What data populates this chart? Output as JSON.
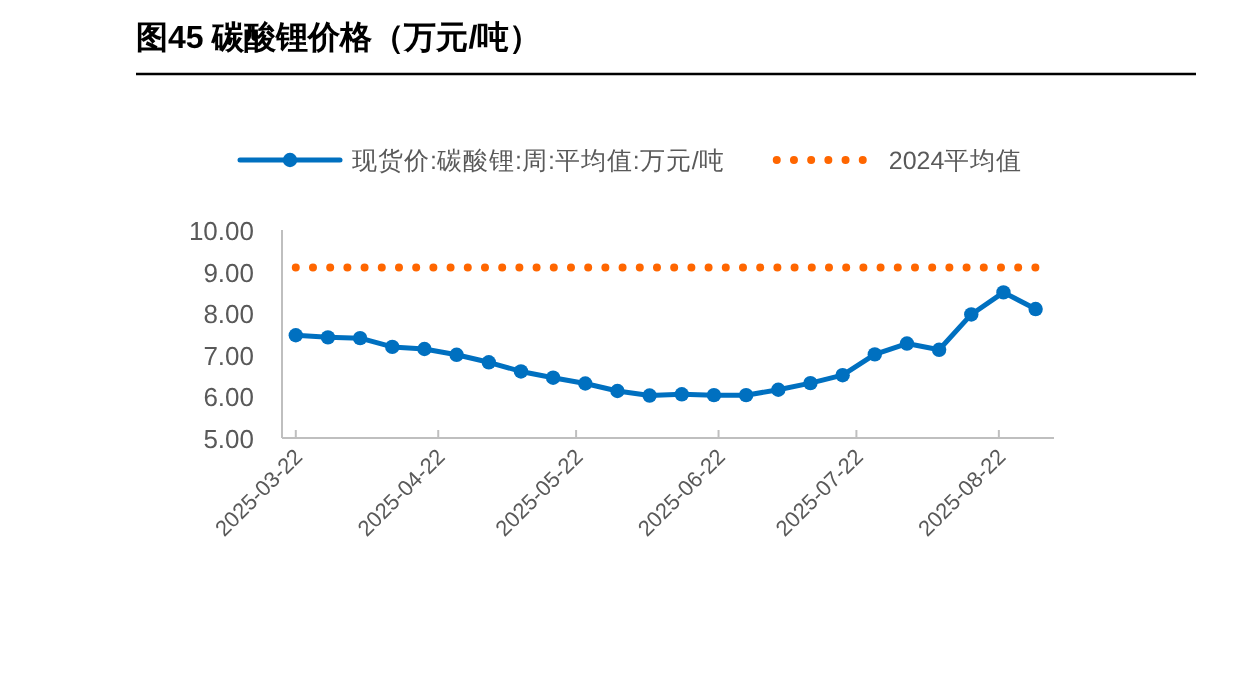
{
  "chart_data": {
    "type": "line",
    "title": "图45 碳酸锂价格（万元/吨）",
    "x": [
      "2025-03-22",
      "2025-03-29",
      "2025-04-05",
      "2025-04-12",
      "2025-04-19",
      "2025-04-26",
      "2025-05-03",
      "2025-05-10",
      "2025-05-17",
      "2025-05-24",
      "2025-05-31",
      "2025-06-07",
      "2025-06-14",
      "2025-06-21",
      "2025-06-28",
      "2025-07-05",
      "2025-07-12",
      "2025-07-19",
      "2025-07-26",
      "2025-08-02",
      "2025-08-09",
      "2025-08-16",
      "2025-08-23",
      "2025-08-30"
    ],
    "series": [
      {
        "name": "现货价:碳酸锂:周:平均值:万元/吨",
        "color": "#0070c0",
        "marker": "circle",
        "line_style": "solid",
        "values": [
          7.47,
          7.42,
          7.4,
          7.19,
          7.14,
          7.0,
          6.82,
          6.6,
          6.45,
          6.31,
          6.13,
          6.02,
          6.05,
          6.03,
          6.03,
          6.16,
          6.32,
          6.51,
          7.01,
          7.27,
          7.12,
          7.97,
          8.5,
          8.1
        ]
      },
      {
        "name": "2024平均值",
        "color": "#ff6600",
        "marker": "none",
        "line_style": "dotted",
        "values": [
          9.1,
          9.1,
          9.1,
          9.1,
          9.1,
          9.1,
          9.1,
          9.1,
          9.1,
          9.1,
          9.1,
          9.1,
          9.1,
          9.1,
          9.1,
          9.1,
          9.1,
          9.1,
          9.1,
          9.1,
          9.1,
          9.1,
          9.1,
          9.1
        ]
      }
    ],
    "xlim": [
      "2025-03-19",
      "2025-09-03"
    ],
    "xticks": [
      "2025-03-22",
      "2025-04-22",
      "2025-05-22",
      "2025-06-22",
      "2025-07-22",
      "2025-08-22"
    ],
    "ylim": [
      5,
      10
    ],
    "yticks": [
      {
        "value": 5,
        "label": "5.00"
      },
      {
        "value": 6,
        "label": "6.00"
      },
      {
        "value": 7,
        "label": "7.00"
      },
      {
        "value": 8,
        "label": "8.00"
      },
      {
        "value": 9,
        "label": "9.00"
      },
      {
        "value": 10,
        "label": "10.00"
      }
    ],
    "grid": false,
    "legend": "top"
  }
}
